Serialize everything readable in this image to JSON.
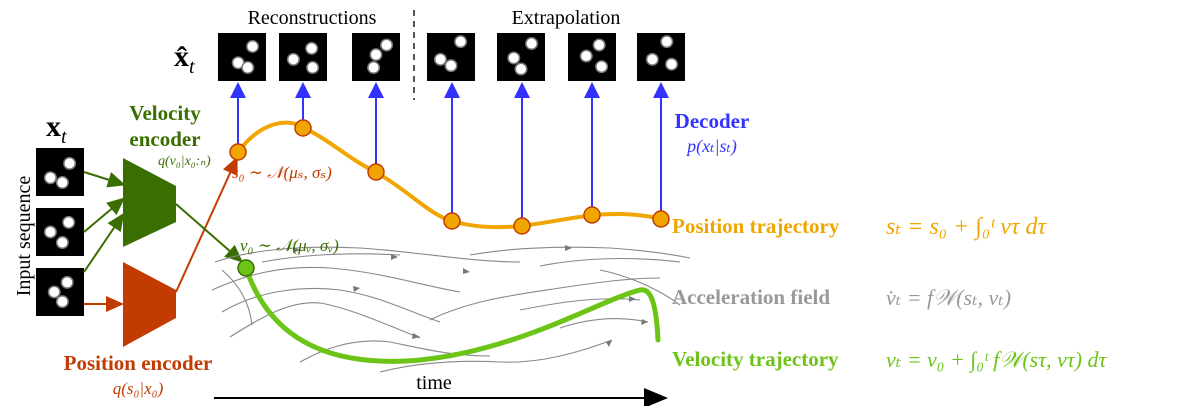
{
  "header": {
    "reconstructions": "Reconstructions",
    "extrapolation": "Extrapolation",
    "xhat_symbol": "x̂",
    "xhat_sub": "t"
  },
  "input": {
    "x_symbol": "x",
    "x_sub": "t",
    "sequence_label": "Input sequence"
  },
  "velocity_encoder": {
    "title_line1": "Velocity",
    "title_line2": "encoder",
    "formula": "q(v₀|x₀:ₙ)"
  },
  "position_encoder": {
    "title": "Position encoder",
    "formula": "q(s₀|x₀)"
  },
  "decoder": {
    "title": "Decoder",
    "formula": "p(xₜ|sₜ)"
  },
  "s0_prior": "s₀ ∼ 𝒩(μₛ, σₛ)",
  "v0_prior": "v₀ ∼ 𝒩(μᵥ, σᵥ)",
  "position_trajectory": {
    "label": "Position trajectory",
    "equation": "sₜ = s₀ + ∫₀ᵗ vτ dτ"
  },
  "acceleration_field": {
    "label": "Acceleration field",
    "equation": "v̇ₜ = f𝒲(sₜ, vₜ)"
  },
  "velocity_trajectory": {
    "label": "Velocity trajectory",
    "equation": "vₜ = v₀ + ∫₀ᵗ f𝒲(sτ, vτ) dτ"
  },
  "time_axis_label": "time",
  "colors": {
    "velocity": "#3a6e00",
    "velocity_light": "#6cc417",
    "position": "#c23b00",
    "trajectory": "#f0a500",
    "decoder": "#3333ff",
    "field": "#999999"
  }
}
